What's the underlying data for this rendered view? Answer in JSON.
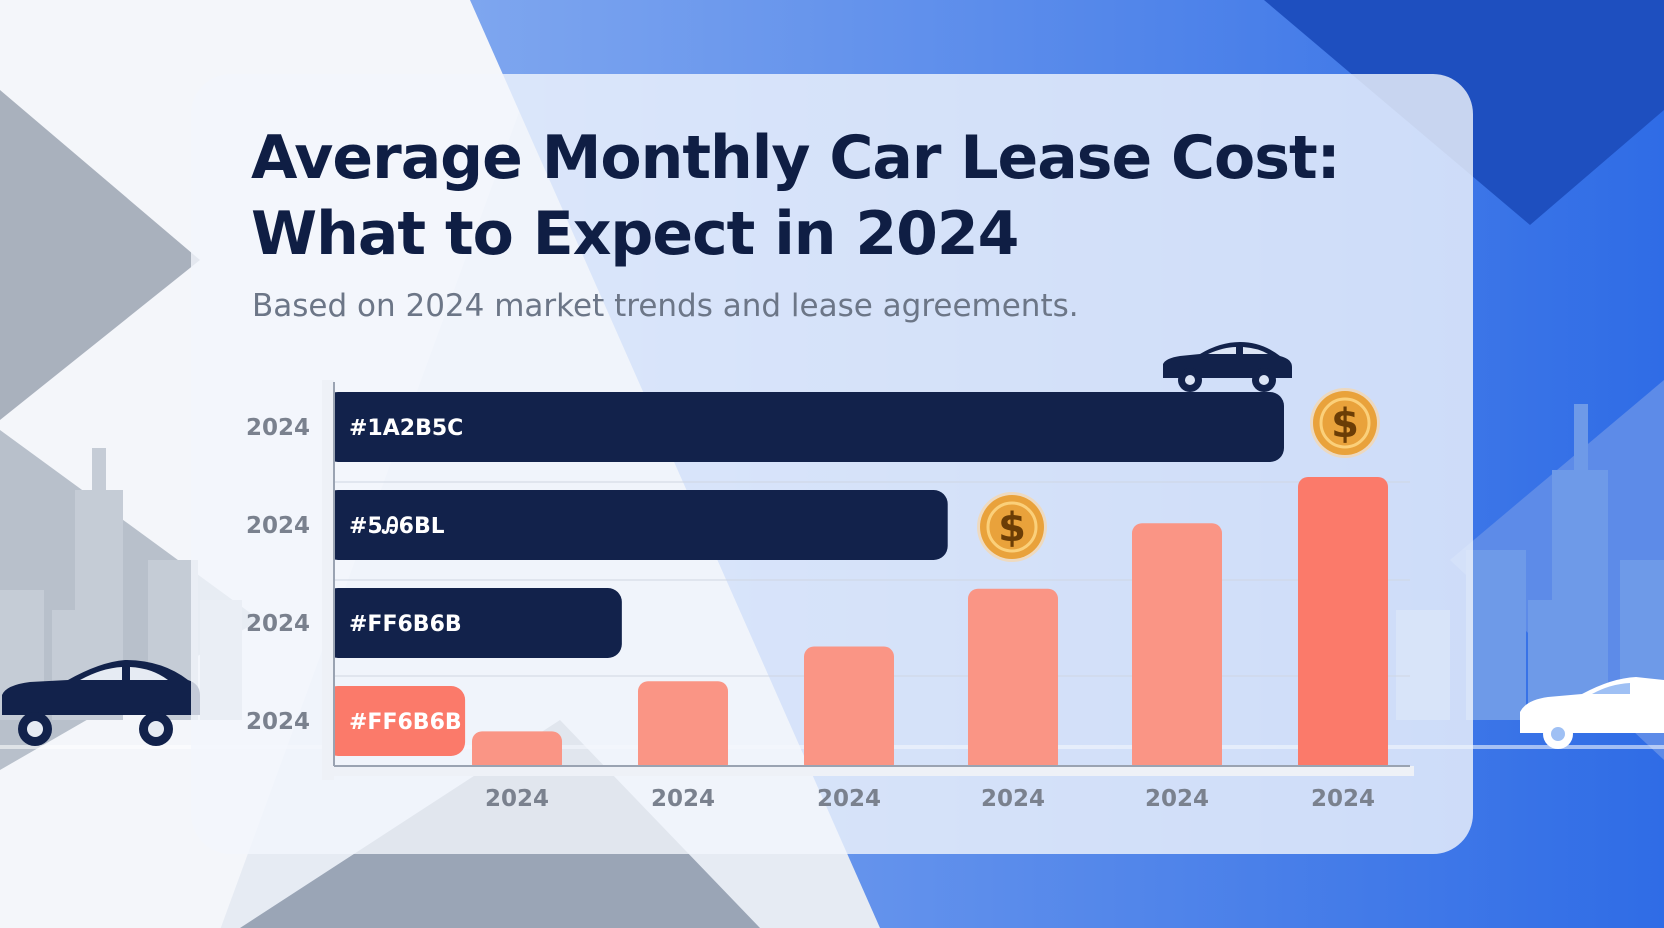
{
  "title_lines": [
    "Average Monthly Car Lease Cost:",
    "What to Expect in 2024"
  ],
  "subtitle": "Based on 2024 market trends and lease agreements.",
  "colors": {
    "navy": "#12224b",
    "coral": "#fb7a6a",
    "coral_light": "#fa9585",
    "coin": "#e9a23b",
    "sky": "#3b78ea"
  },
  "icons": [
    "car-icon",
    "dollar-coin-icon",
    "city-skyline"
  ],
  "chart_data": [
    {
      "type": "bar",
      "orientation": "horizontal",
      "categories": [
        "2024",
        "2024",
        "2024",
        "2024"
      ],
      "bar_labels": [
        "#1A2B5C",
        "#5Ꭿ6Bᒪ",
        "#FF6B6B",
        "#FF6B6B"
      ],
      "values": [
        100,
        64.6,
        30.3,
        13.8
      ],
      "bar_colors": [
        "#12224b",
        "#12224b",
        "#12224b",
        "#fb7a6a"
      ],
      "xlim": [
        0,
        100
      ],
      "title": "",
      "xlabel": "",
      "ylabel": ""
    },
    {
      "type": "bar",
      "orientation": "vertical",
      "categories": [
        "2024",
        "2024",
        "2024",
        "2024",
        "2024",
        "2024"
      ],
      "values": [
        9,
        22,
        31,
        46,
        63,
        75
      ],
      "ylim": [
        0,
        75
      ],
      "grid": true,
      "title": "",
      "xlabel": "",
      "ylabel": ""
    }
  ]
}
